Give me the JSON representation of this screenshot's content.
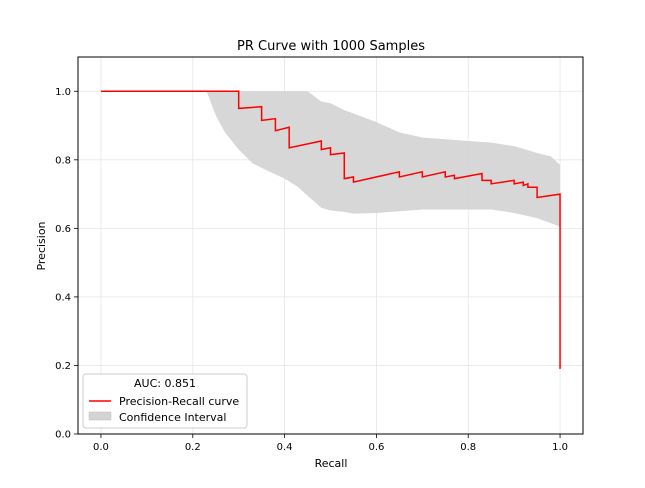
{
  "chart_data": {
    "type": "line",
    "title": "PR Curve with 1000 Samples",
    "xlabel": "Recall",
    "ylabel": "Precision",
    "xlim": [
      -0.05,
      1.05
    ],
    "ylim": [
      0.0,
      1.1
    ],
    "xticks": [
      0.0,
      0.2,
      0.4,
      0.6,
      0.8,
      1.0
    ],
    "xtick_labels": [
      "0.0",
      "0.2",
      "0.4",
      "0.6",
      "0.8",
      "1.0"
    ],
    "yticks": [
      0.0,
      0.2,
      0.4,
      0.6,
      0.8,
      1.0
    ],
    "ytick_labels": [
      "0.0",
      "0.2",
      "0.4",
      "0.6",
      "0.8",
      "1.0"
    ],
    "grid": true,
    "legend": {
      "placement": "lower-left",
      "title": "AUC: 0.851",
      "entries": [
        "Precision-Recall curve",
        "Confidence Interval"
      ]
    },
    "series": [
      {
        "name": "Precision-Recall curve",
        "kind": "step-line",
        "color": "#ff0000",
        "x": [
          0.0,
          0.3,
          0.3,
          0.35,
          0.35,
          0.38,
          0.38,
          0.41,
          0.41,
          0.48,
          0.48,
          0.5,
          0.5,
          0.53,
          0.53,
          0.55,
          0.55,
          0.65,
          0.65,
          0.7,
          0.7,
          0.75,
          0.75,
          0.77,
          0.77,
          0.83,
          0.83,
          0.85,
          0.85,
          0.9,
          0.9,
          0.92,
          0.92,
          0.93,
          0.93,
          0.95,
          0.95,
          1.0,
          1.0
        ],
        "y": [
          1.0,
          1.0,
          0.95,
          0.955,
          0.915,
          0.92,
          0.885,
          0.895,
          0.835,
          0.855,
          0.83,
          0.835,
          0.815,
          0.82,
          0.745,
          0.75,
          0.735,
          0.765,
          0.75,
          0.765,
          0.75,
          0.765,
          0.75,
          0.755,
          0.745,
          0.76,
          0.74,
          0.74,
          0.73,
          0.74,
          0.73,
          0.735,
          0.725,
          0.73,
          0.72,
          0.72,
          0.69,
          0.7,
          0.19
        ]
      },
      {
        "name": "Confidence Interval",
        "kind": "band",
        "color": "#d3d3d3",
        "x": [
          0.23,
          0.25,
          0.27,
          0.3,
          0.33,
          0.36,
          0.4,
          0.43,
          0.45,
          0.48,
          0.5,
          0.53,
          0.55,
          0.6,
          0.65,
          0.7,
          0.75,
          0.8,
          0.85,
          0.9,
          0.95,
          0.98,
          1.0
        ],
        "upper": [
          1.0,
          1.0,
          1.0,
          1.0,
          1.0,
          1.0,
          1.0,
          1.0,
          1.0,
          0.97,
          0.965,
          0.945,
          0.935,
          0.91,
          0.88,
          0.865,
          0.86,
          0.855,
          0.85,
          0.84,
          0.82,
          0.81,
          0.785
        ],
        "lower": [
          1.0,
          0.93,
          0.88,
          0.83,
          0.79,
          0.77,
          0.745,
          0.72,
          0.695,
          0.66,
          0.652,
          0.648,
          0.643,
          0.645,
          0.65,
          0.655,
          0.655,
          0.655,
          0.655,
          0.645,
          0.63,
          0.615,
          0.605
        ]
      }
    ]
  }
}
